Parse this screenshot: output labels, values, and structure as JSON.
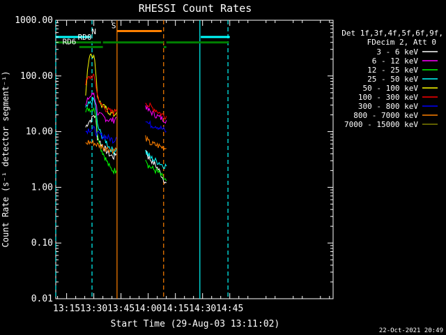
{
  "chart_data": {
    "type": "line",
    "title": "RHESSI Count Rates",
    "xlabel": "Start Time (29-Aug-03 13:11:02)",
    "ylabel": "Count Rate (s⁻¹ detector segment⁻¹)",
    "y_scale": "log",
    "ylim": [
      0.01,
      1000
    ],
    "y_ticks": [
      "0.01",
      "0.10",
      "1.00",
      "10.00",
      "100.00",
      "1000.00"
    ],
    "xlim_min": [
      13.0,
      166.0
    ],
    "x_ticks": [
      {
        "min": 19,
        "label": "13:15"
      },
      {
        "min": 34,
        "label": "13:30"
      },
      {
        "min": 49,
        "label": "13:45"
      },
      {
        "min": 64,
        "label": "14:00"
      },
      {
        "min": 79,
        "label": "14:15"
      },
      {
        "min": 94,
        "label": "14:30"
      },
      {
        "min": 109,
        "label": "14:45"
      }
    ],
    "timestamp": "22-Oct-2021 20:49",
    "legend_title": [
      "Det 1f,3f,4f,5f,6f,9f,",
      "FDecim 2, Att 0"
    ],
    "segments": [
      [
        29.5,
        46.5
      ],
      [
        62.5,
        74.0
      ]
    ],
    "series": [
      {
        "name": "3 - 6 keV",
        "color": "#ffffff",
        "values_seg1": [
          [
            29.5,
            12
          ],
          [
            31,
            15
          ],
          [
            33,
            17
          ],
          [
            34,
            20
          ],
          [
            35,
            18
          ],
          [
            36,
            8
          ],
          [
            38,
            6
          ],
          [
            41,
            4.5
          ],
          [
            43,
            3.8
          ],
          [
            45,
            3.5
          ],
          [
            46.5,
            4
          ]
        ],
        "values_seg2": [
          [
            62.5,
            5
          ],
          [
            64,
            3.5
          ],
          [
            66,
            3
          ],
          [
            68,
            2.5
          ],
          [
            70,
            2
          ],
          [
            72,
            1.5
          ],
          [
            74,
            1.2
          ]
        ]
      },
      {
        "name": "6 - 12 keV",
        "color": "#ff00ff",
        "values_seg1": [
          [
            29.5,
            28
          ],
          [
            31,
            40
          ],
          [
            33,
            45
          ],
          [
            34,
            50
          ],
          [
            35,
            35
          ],
          [
            36,
            22
          ],
          [
            38,
            19
          ],
          [
            41,
            17
          ],
          [
            43,
            16
          ],
          [
            45,
            16
          ],
          [
            46.5,
            18
          ]
        ],
        "values_seg2": [
          [
            62.5,
            30
          ],
          [
            64,
            24
          ],
          [
            66,
            22
          ],
          [
            68,
            20
          ],
          [
            70,
            18
          ],
          [
            72,
            17
          ],
          [
            74,
            16
          ]
        ]
      },
      {
        "name": "12 - 25 keV",
        "color": "#00ff00",
        "values_seg1": [
          [
            29.5,
            22
          ],
          [
            31,
            26
          ],
          [
            33,
            25
          ],
          [
            34,
            28
          ],
          [
            35,
            20
          ],
          [
            36,
            10
          ],
          [
            38,
            5
          ],
          [
            41,
            3
          ],
          [
            43,
            2.2
          ],
          [
            45,
            2
          ],
          [
            46.5,
            2
          ]
        ],
        "values_seg2": [
          [
            62.5,
            3.5
          ],
          [
            64,
            2.5
          ],
          [
            66,
            2.2
          ],
          [
            68,
            2
          ],
          [
            70,
            1.8
          ],
          [
            72,
            1.5
          ],
          [
            74,
            1.3
          ]
        ]
      },
      {
        "name": "25 - 50 keV",
        "color": "#00ffff",
        "values_seg1": [
          [
            29.5,
            25
          ],
          [
            31,
            30
          ],
          [
            33,
            34
          ],
          [
            34,
            38
          ],
          [
            35,
            28
          ],
          [
            36,
            13
          ],
          [
            38,
            9
          ],
          [
            41,
            6.5
          ],
          [
            43,
            5
          ],
          [
            45,
            4.5
          ],
          [
            46.5,
            5
          ]
        ],
        "values_seg2": [
          [
            62.5,
            4.5
          ],
          [
            64,
            3.8
          ],
          [
            66,
            3.3
          ],
          [
            68,
            3
          ],
          [
            70,
            2.8
          ],
          [
            72,
            2.5
          ],
          [
            74,
            2.4
          ]
        ]
      },
      {
        "name": "50 - 100 keV",
        "color": "#ffff00",
        "values_seg1": [
          [
            29.5,
            45
          ],
          [
            31,
            180
          ],
          [
            32,
            260
          ],
          [
            33,
            250
          ],
          [
            34,
            220
          ],
          [
            35,
            140
          ],
          [
            36,
            45
          ],
          [
            38,
            30
          ],
          [
            41,
            25
          ],
          [
            43,
            22
          ],
          [
            45,
            20
          ],
          [
            46.5,
            22
          ]
        ],
        "values_seg2": []
      },
      {
        "name": "100 - 300 keV",
        "color": "#ff0000",
        "values_seg1": [
          [
            29.5,
            75
          ],
          [
            31,
            90
          ],
          [
            33,
            100
          ],
          [
            34,
            95
          ],
          [
            35,
            75
          ],
          [
            36,
            45
          ],
          [
            38,
            30
          ],
          [
            41,
            25
          ],
          [
            43,
            23
          ],
          [
            45,
            22
          ],
          [
            46.5,
            25
          ]
        ],
        "values_seg2": [
          [
            62.5,
            35
          ],
          [
            64,
            30
          ],
          [
            66,
            27
          ],
          [
            68,
            25
          ],
          [
            70,
            22
          ],
          [
            72,
            20
          ],
          [
            74,
            19
          ]
        ]
      },
      {
        "name": "300 - 800 keV",
        "color": "#0000ff",
        "values_seg1": [
          [
            29.5,
            10
          ],
          [
            31,
            11
          ],
          [
            33,
            11
          ],
          [
            34,
            11
          ],
          [
            35,
            10
          ],
          [
            36,
            9
          ],
          [
            38,
            8.5
          ],
          [
            41,
            8
          ],
          [
            43,
            7.5
          ],
          [
            45,
            7
          ],
          [
            46.5,
            8
          ]
        ],
        "values_seg2": [
          [
            62.5,
            17
          ],
          [
            64,
            14
          ],
          [
            66,
            13
          ],
          [
            68,
            13
          ],
          [
            70,
            12
          ],
          [
            72,
            11
          ],
          [
            74,
            10
          ]
        ]
      },
      {
        "name": "800 - 7000 keV",
        "color": "#ff8000",
        "values_seg1": [
          [
            29.5,
            6
          ],
          [
            31,
            6.5
          ],
          [
            33,
            6.3
          ],
          [
            34,
            6.3
          ],
          [
            35,
            6
          ],
          [
            36,
            5.8
          ],
          [
            38,
            5.5
          ],
          [
            41,
            5
          ],
          [
            43,
            4.8
          ],
          [
            45,
            4.5
          ],
          [
            46.5,
            5
          ]
        ],
        "values_seg2": [
          [
            62.5,
            8
          ],
          [
            64,
            6.5
          ],
          [
            66,
            6
          ],
          [
            68,
            5.8
          ],
          [
            70,
            5.5
          ],
          [
            72,
            5.2
          ],
          [
            74,
            5
          ]
        ]
      },
      {
        "name": "7000 - 15000 keV",
        "color": "#808000",
        "values_seg1": [],
        "values_seg2": []
      }
    ],
    "vlines": [
      {
        "min": 13.0,
        "color": "#00ffff",
        "style": "dashed"
      },
      {
        "min": 33.0,
        "color": "#00ffff",
        "style": "dashed"
      },
      {
        "min": 46.8,
        "color": "#ff8000",
        "style": "solid"
      },
      {
        "min": 72.5,
        "color": "#ff8000",
        "style": "dashed"
      },
      {
        "min": 92.5,
        "color": "#00ffff",
        "style": "solid"
      },
      {
        "min": 108.0,
        "color": "#00ffff",
        "style": "dashed"
      }
    ],
    "attenuator_bars": [
      {
        "label": "N",
        "color": "#00ffff",
        "from": 13.0,
        "to": 32.0,
        "y": 500,
        "label_at": 34.0
      },
      {
        "label": "",
        "color": "#00ffff",
        "from": 93.0,
        "to": 109.0,
        "y": 500
      },
      {
        "label": "S",
        "color": "#ff8000",
        "from": 47.0,
        "to": 71.5,
        "y": 640,
        "label_at": 45.0
      },
      {
        "label": "RD0",
        "color": "#008000",
        "from": 13.0,
        "to": 38.0,
        "y": 400,
        "label_at": 29.0
      },
      {
        "label": "",
        "color": "#008000",
        "from": 39.0,
        "to": 72.5,
        "y": 400
      },
      {
        "label": "",
        "color": "#008000",
        "from": 74.0,
        "to": 108.5,
        "y": 400
      },
      {
        "label": "RD6",
        "color": "#008000",
        "from": 26.0,
        "to": 39.0,
        "y": 330,
        "label_at": 20.5
      },
      {
        "label": "",
        "color": "#008000",
        "from": 72.5,
        "to": 74.0,
        "y": 330
      }
    ]
  }
}
